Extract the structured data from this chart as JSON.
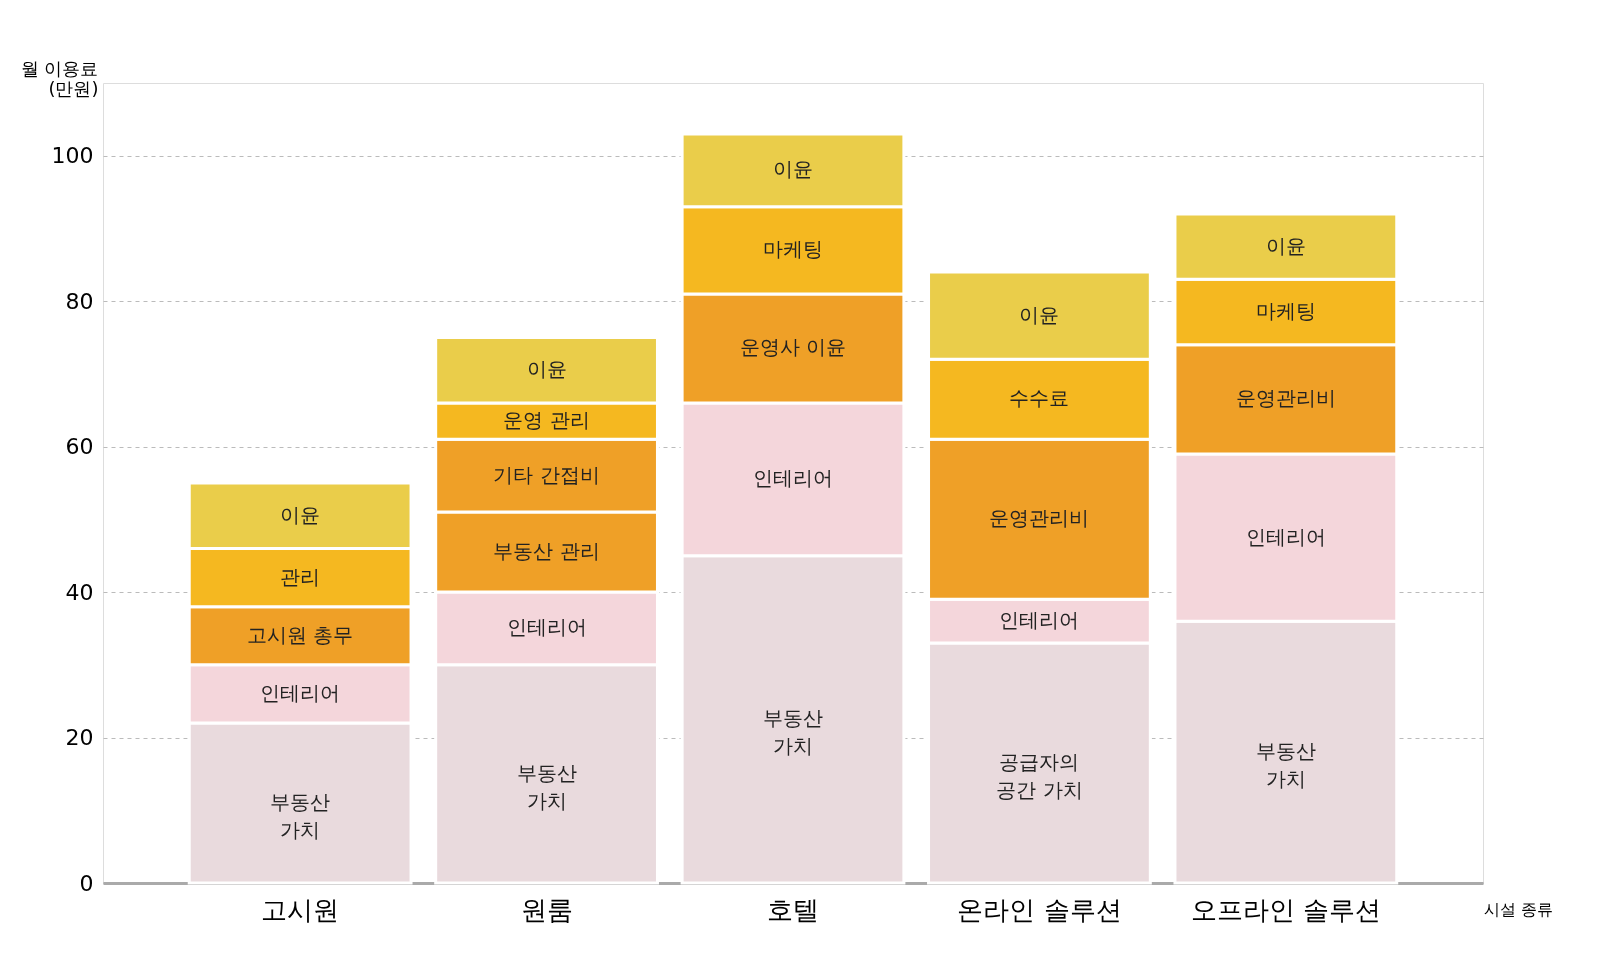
{
  "chart_data": {
    "type": "bar",
    "stacked": true,
    "ylabel": "월 이용료\n(만원)",
    "xlabel": "시설 종류",
    "categories": [
      "고시원",
      "원룸",
      "호텔",
      "온라인 솔루션",
      "오프라인 솔루션"
    ],
    "ylim": [
      0,
      110
    ],
    "yticks": [
      0,
      20,
      40,
      60,
      80,
      100
    ],
    "grid": "y",
    "series": [
      {
        "color": "#e9dadd",
        "values": [
          22,
          30,
          45,
          33,
          36
        ],
        "value_labels": [
          "부동산\n가치",
          "부동산\n가치",
          "부동산\n가치",
          "공급자의\n공간 가치",
          "부동산\n가치"
        ]
      },
      {
        "color": "#f4d6db",
        "values": [
          8,
          10,
          21,
          6,
          23
        ],
        "value_labels": [
          "인테리어",
          "인테리어",
          "인테리어",
          "인테리어",
          "인테리어"
        ]
      },
      {
        "color": "#efa027",
        "values": [
          8,
          11,
          15,
          22,
          15
        ],
        "value_labels": [
          "고시원 총무",
          "부동산 관리",
          "운영사 이윤",
          "운영관리비",
          "운영관리비"
        ]
      },
      {
        "color": "#efa027",
        "values": [
          null,
          10,
          null,
          null,
          null
        ],
        "value_labels": [
          null,
          "기타 간접비",
          null,
          null,
          null
        ]
      },
      {
        "color": "#f5b820",
        "values": [
          8,
          5,
          12,
          11,
          9
        ],
        "value_labels": [
          "관리",
          "운영 관리",
          "마케팅",
          "수수료",
          "마케팅"
        ]
      },
      {
        "color": "#eacd4a",
        "values": [
          9,
          9,
          10,
          12,
          9
        ],
        "value_labels": [
          "이윤",
          "이윤",
          "이윤",
          "이윤",
          "이윤"
        ]
      }
    ]
  }
}
